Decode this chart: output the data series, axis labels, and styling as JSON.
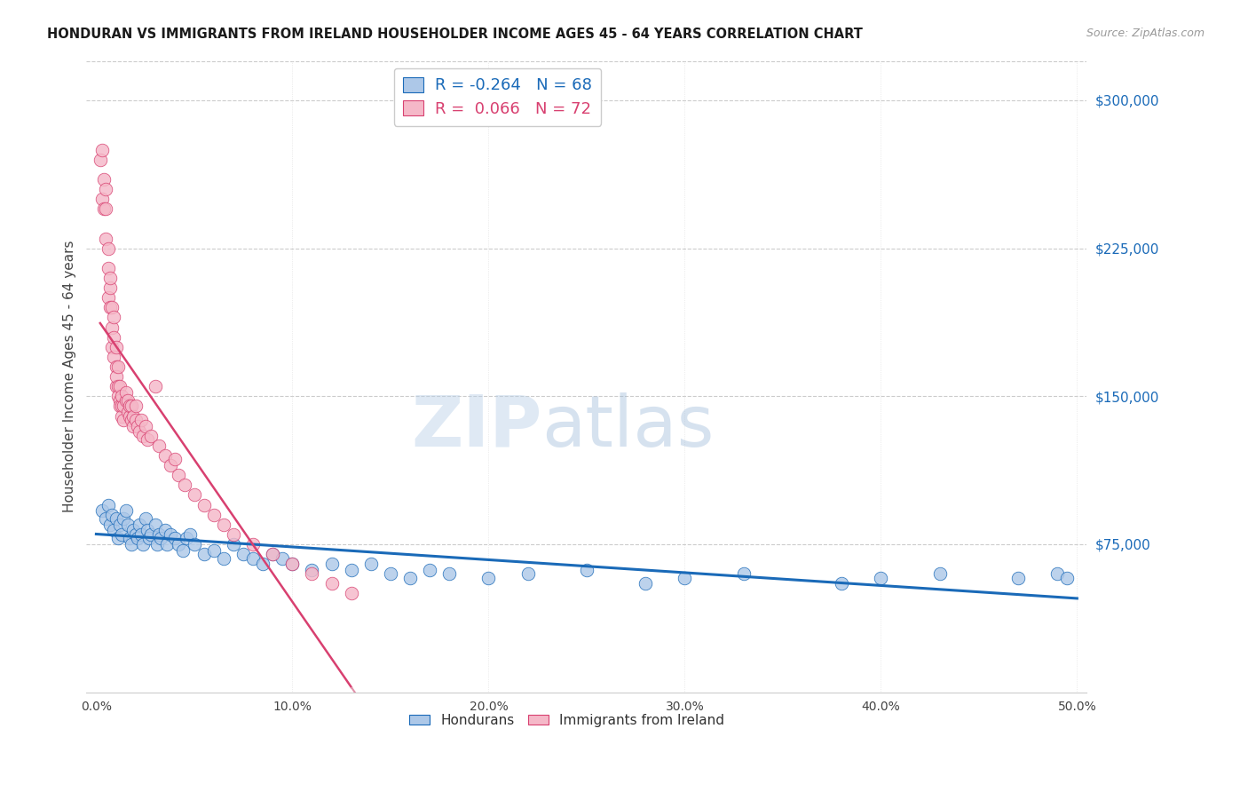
{
  "title": "HONDURAN VS IMMIGRANTS FROM IRELAND HOUSEHOLDER INCOME AGES 45 - 64 YEARS CORRELATION CHART",
  "source": "Source: ZipAtlas.com",
  "ylabel": "Householder Income Ages 45 - 64 years",
  "y_tick_values": [
    75000,
    150000,
    225000,
    300000
  ],
  "xlim": [
    0.0,
    0.5
  ],
  "ylim": [
    0,
    320000
  ],
  "blue_R": -0.264,
  "blue_N": 68,
  "pink_R": 0.066,
  "pink_N": 72,
  "blue_color": "#adc8e8",
  "blue_line_color": "#1a6ab8",
  "pink_color": "#f5b8c8",
  "pink_line_color": "#d84070",
  "pink_dash_color": "#e090a8",
  "watermark_zip": "ZIP",
  "watermark_atlas": "atlas",
  "blue_scatter_x": [
    0.003,
    0.005,
    0.006,
    0.007,
    0.008,
    0.009,
    0.01,
    0.011,
    0.012,
    0.013,
    0.014,
    0.015,
    0.016,
    0.017,
    0.018,
    0.019,
    0.02,
    0.021,
    0.022,
    0.023,
    0.024,
    0.025,
    0.026,
    0.027,
    0.028,
    0.03,
    0.031,
    0.032,
    0.033,
    0.035,
    0.036,
    0.038,
    0.04,
    0.042,
    0.044,
    0.046,
    0.048,
    0.05,
    0.055,
    0.06,
    0.065,
    0.07,
    0.075,
    0.08,
    0.085,
    0.09,
    0.095,
    0.1,
    0.11,
    0.12,
    0.13,
    0.14,
    0.15,
    0.16,
    0.17,
    0.18,
    0.2,
    0.22,
    0.25,
    0.28,
    0.3,
    0.33,
    0.38,
    0.4,
    0.43,
    0.47,
    0.49,
    0.495
  ],
  "blue_scatter_y": [
    92000,
    88000,
    95000,
    85000,
    90000,
    82000,
    88000,
    78000,
    85000,
    80000,
    88000,
    92000,
    85000,
    78000,
    75000,
    82000,
    80000,
    78000,
    85000,
    80000,
    75000,
    88000,
    82000,
    78000,
    80000,
    85000,
    75000,
    80000,
    78000,
    82000,
    75000,
    80000,
    78000,
    75000,
    72000,
    78000,
    80000,
    75000,
    70000,
    72000,
    68000,
    75000,
    70000,
    68000,
    65000,
    70000,
    68000,
    65000,
    62000,
    65000,
    62000,
    65000,
    60000,
    58000,
    62000,
    60000,
    58000,
    60000,
    62000,
    55000,
    58000,
    60000,
    55000,
    58000,
    60000,
    58000,
    60000,
    58000
  ],
  "pink_scatter_x": [
    0.002,
    0.003,
    0.003,
    0.004,
    0.004,
    0.005,
    0.005,
    0.005,
    0.006,
    0.006,
    0.006,
    0.007,
    0.007,
    0.007,
    0.008,
    0.008,
    0.008,
    0.009,
    0.009,
    0.009,
    0.01,
    0.01,
    0.01,
    0.01,
    0.011,
    0.011,
    0.011,
    0.012,
    0.012,
    0.012,
    0.013,
    0.013,
    0.013,
    0.014,
    0.014,
    0.015,
    0.015,
    0.016,
    0.016,
    0.017,
    0.017,
    0.018,
    0.018,
    0.019,
    0.019,
    0.02,
    0.02,
    0.021,
    0.022,
    0.023,
    0.024,
    0.025,
    0.026,
    0.028,
    0.03,
    0.032,
    0.035,
    0.038,
    0.04,
    0.042,
    0.045,
    0.05,
    0.055,
    0.06,
    0.065,
    0.07,
    0.08,
    0.09,
    0.1,
    0.11,
    0.12,
    0.13
  ],
  "pink_scatter_y": [
    270000,
    275000,
    250000,
    260000,
    245000,
    230000,
    245000,
    255000,
    215000,
    225000,
    200000,
    205000,
    195000,
    210000,
    185000,
    195000,
    175000,
    180000,
    190000,
    170000,
    165000,
    175000,
    155000,
    160000,
    155000,
    165000,
    150000,
    148000,
    155000,
    145000,
    145000,
    150000,
    140000,
    145000,
    138000,
    148000,
    152000,
    142000,
    148000,
    140000,
    145000,
    138000,
    145000,
    135000,
    140000,
    138000,
    145000,
    135000,
    132000,
    138000,
    130000,
    135000,
    128000,
    130000,
    155000,
    125000,
    120000,
    115000,
    118000,
    110000,
    105000,
    100000,
    95000,
    90000,
    85000,
    80000,
    75000,
    70000,
    65000,
    60000,
    55000,
    50000
  ]
}
